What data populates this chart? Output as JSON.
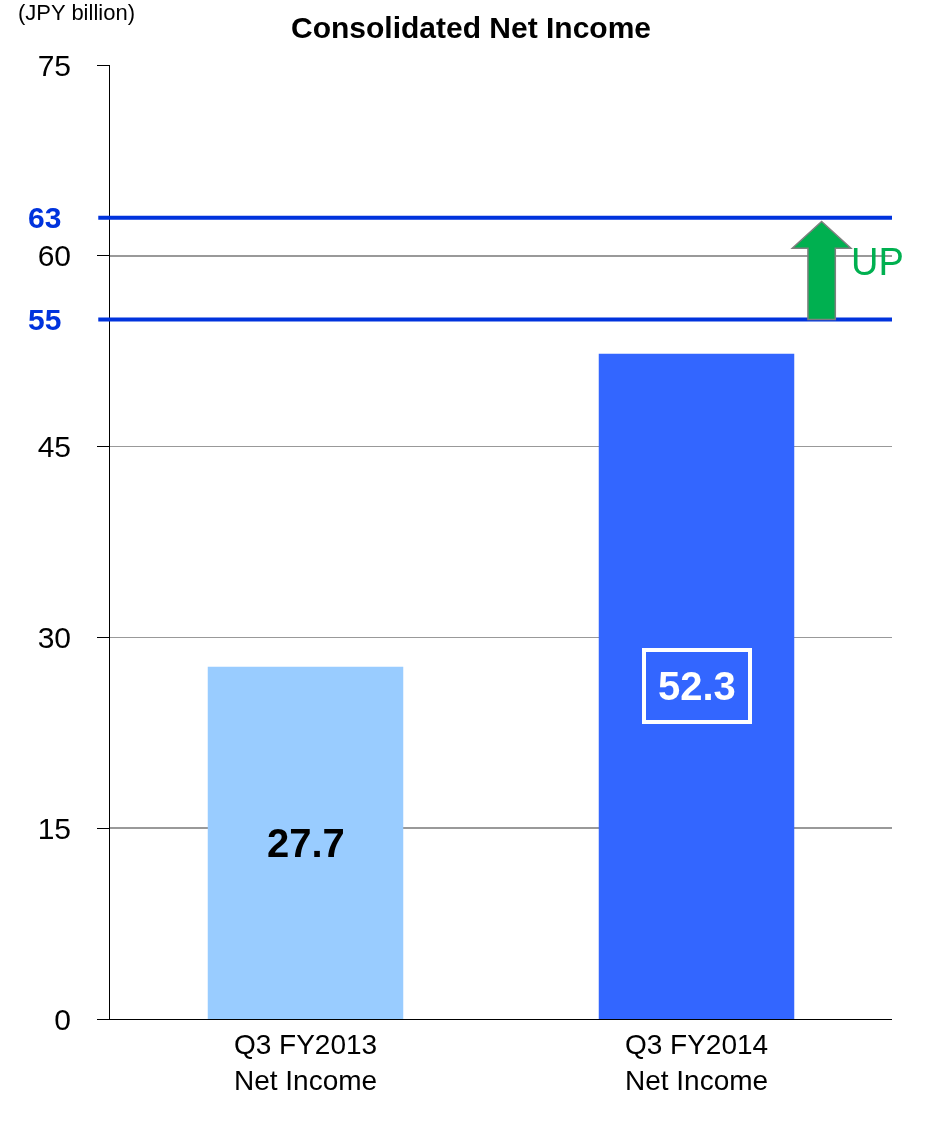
{
  "chart_data": {
    "type": "bar",
    "title": "Consolidated Net Income",
    "ylabel": "(JPY billion)",
    "categories": [
      "Q3 FY2013\nNet Income",
      "Q3 FY2014\nNet Income"
    ],
    "values": [
      27.7,
      52.3
    ],
    "colors": [
      "#99ccff",
      "#3366ff"
    ],
    "ylim": [
      0,
      75
    ],
    "yticks": [
      0,
      15,
      30,
      45,
      60,
      75
    ],
    "grid": "y",
    "data_labels": true,
    "ref_lines": [
      {
        "axis": "y",
        "value": 63,
        "label": "63",
        "color": "#0033dd"
      },
      {
        "axis": "y",
        "value": 55,
        "label": "55",
        "color": "#0033dd"
      }
    ],
    "annotations": [
      "UP"
    ]
  }
}
